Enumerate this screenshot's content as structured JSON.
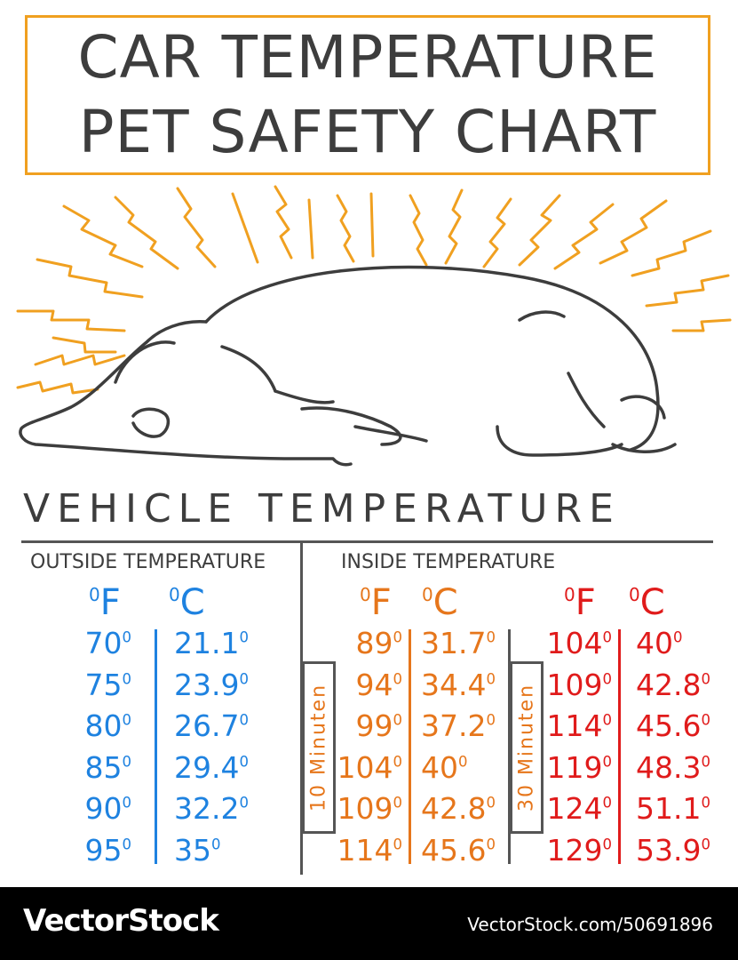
{
  "title": {
    "line1": "CAR TEMPERATURE",
    "line2": "PET SAFETY CHART"
  },
  "colors": {
    "frame": "#f0a020",
    "sunrays": "#f0a020",
    "outline": "#3d3d3d",
    "outside": "#1e82e0",
    "inside_10": "#e6761b",
    "inside_30": "#e01b1b"
  },
  "illustration": {
    "subject": "sleeping-dog",
    "effect": "heat-rays"
  },
  "section_heading": "VEHICLE TEMPERATURE",
  "outside": {
    "label": "OUTSIDE TEMPERATURE",
    "f_unit": "F",
    "c_unit": "C",
    "rows": [
      {
        "f": "70",
        "c": "21.1"
      },
      {
        "f": "75",
        "c": "23.9"
      },
      {
        "f": "80",
        "c": "26.7"
      },
      {
        "f": "85",
        "c": "29.4"
      },
      {
        "f": "90",
        "c": "32.2"
      },
      {
        "f": "95",
        "c": "35"
      }
    ]
  },
  "inside": {
    "label": "INSIDE TEMPERATURE",
    "after_10": {
      "badge": "10 Minuten",
      "f_unit": "F",
      "c_unit": "C",
      "rows": [
        {
          "f": "89",
          "c": "31.7"
        },
        {
          "f": "94",
          "c": "34.4"
        },
        {
          "f": "99",
          "c": "37.2"
        },
        {
          "f": "104",
          "c": "40"
        },
        {
          "f": "109",
          "c": "42.8"
        },
        {
          "f": "114",
          "c": "45.6"
        }
      ]
    },
    "after_30": {
      "badge": "30 Minuten",
      "f_unit": "F",
      "c_unit": "C",
      "rows": [
        {
          "f": "104",
          "c": "40"
        },
        {
          "f": "109",
          "c": "42.8"
        },
        {
          "f": "114",
          "c": "45.6"
        },
        {
          "f": "119",
          "c": "48.3"
        },
        {
          "f": "124",
          "c": "51.1"
        },
        {
          "f": "129",
          "c": "53.9"
        }
      ]
    }
  },
  "footer": {
    "brand": "VectorStock",
    "url": "VectorStock.com/50691896"
  }
}
